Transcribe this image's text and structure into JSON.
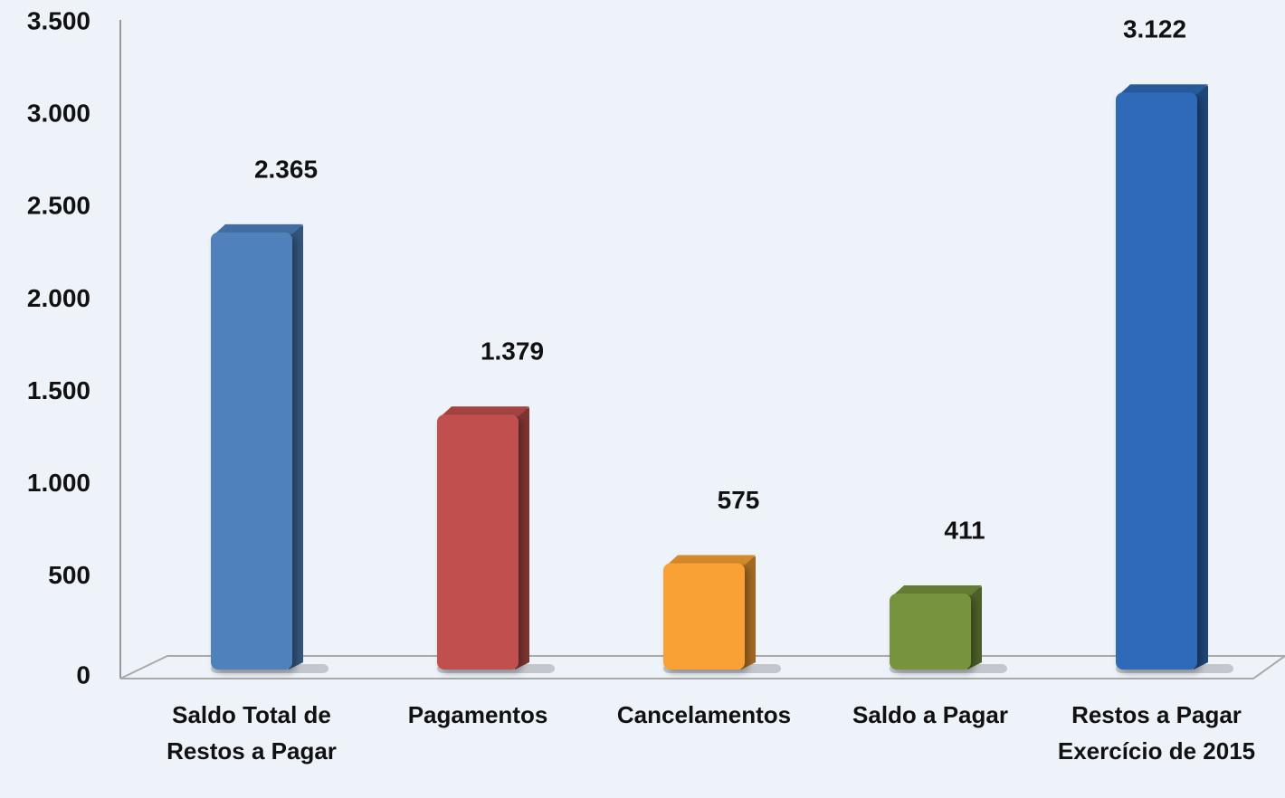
{
  "chart_data": {
    "type": "bar",
    "categories": [
      "Saldo Total de Restos a Pagar",
      "Pagamentos",
      "Cancelamentos",
      "Saldo a Pagar",
      "Restos a Pagar Exercício de 2015"
    ],
    "values": [
      2365,
      1379,
      575,
      411,
      3122
    ],
    "value_labels": [
      "2.365",
      "1.379",
      "575",
      "411",
      "3.122"
    ],
    "colors": [
      "#4f81bd",
      "#c0504d",
      "#f9a134",
      "#77933c",
      "#2e6bb8"
    ],
    "ylim": [
      0,
      3500
    ],
    "yticks": [
      0,
      500,
      {
        "value": 1000,
        "label": "1.000"
      },
      {
        "value": 1500,
        "label": "1.500"
      },
      {
        "value": 2000,
        "label": "2.000"
      },
      {
        "value": 2500,
        "label": "2.500"
      },
      {
        "value": 3000,
        "label": "3.000"
      },
      {
        "value": 3500,
        "label": "3.500"
      }
    ],
    "grid": false
  }
}
